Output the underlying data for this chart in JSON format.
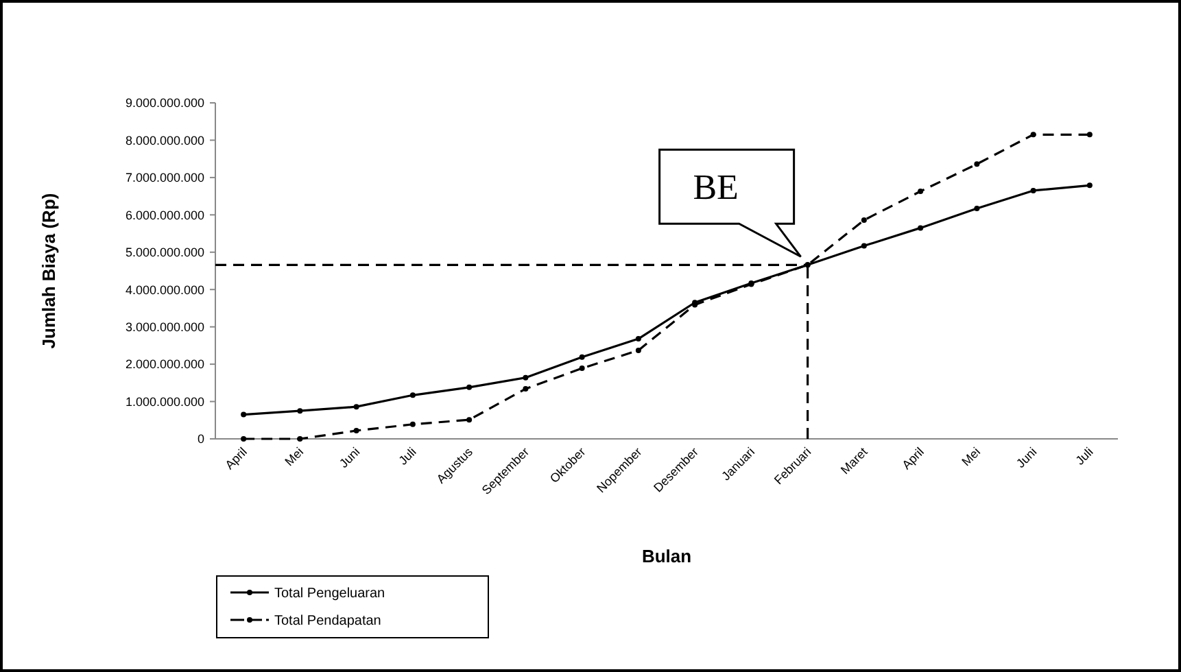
{
  "chart_data": {
    "type": "line",
    "xlabel": "Bulan",
    "ylabel": "Jumlah Biaya (Rp)",
    "categories": [
      "April",
      "Mei",
      "Juni",
      "Juli",
      "Agustus",
      "September",
      "Oktober",
      "Nopember",
      "Desember",
      "Januari",
      "Februari",
      "Maret",
      "April",
      "Mei",
      "Juni",
      "Juli"
    ],
    "series": [
      {
        "name": "Total Pengeluaran",
        "color": "#000000",
        "line_style": "solid",
        "values": [
          650000000,
          750000000,
          860000000,
          1170000000,
          1380000000,
          1640000000,
          2190000000,
          2680000000,
          3650000000,
          4170000000,
          4660000000,
          5170000000,
          5650000000,
          6170000000,
          6650000000,
          6790000000
        ]
      },
      {
        "name": "Total Pendapatan",
        "color": "#000000",
        "line_style": "dashed",
        "values": [
          0,
          0,
          220000000,
          390000000,
          510000000,
          1340000000,
          1890000000,
          2370000000,
          3590000000,
          4140000000,
          4660000000,
          5860000000,
          6630000000,
          7360000000,
          8150000000,
          8150000000
        ]
      }
    ],
    "ylim": [
      0,
      9000000000
    ],
    "yticks": [
      {
        "value": 0,
        "label": "0"
      },
      {
        "value": 1000000000,
        "label": "1.000.000.000"
      },
      {
        "value": 2000000000,
        "label": "2.000.000.000"
      },
      {
        "value": 3000000000,
        "label": "3.000.000.000"
      },
      {
        "value": 4000000000,
        "label": "4.000.000.000"
      },
      {
        "value": 5000000000,
        "label": "5.000.000.000"
      },
      {
        "value": 6000000000,
        "label": "6.000.000.000"
      },
      {
        "value": 7000000000,
        "label": "7.000.000.000"
      },
      {
        "value": 8000000000,
        "label": "8.000.000.000"
      },
      {
        "value": 9000000000,
        "label": "9.000.000.000"
      }
    ],
    "ref_lines": [
      {
        "axis": "y",
        "value": 4660000000,
        "line_style": "dashed",
        "color": "#000000"
      },
      {
        "axis": "x",
        "value": "Februari",
        "line_style": "dashed",
        "color": "#000000"
      }
    ],
    "annotations": [
      {
        "text": "BE",
        "x": "Februari",
        "y": 4660000000
      }
    ],
    "marker": "circle",
    "grid": false,
    "legend": "bottom left"
  }
}
